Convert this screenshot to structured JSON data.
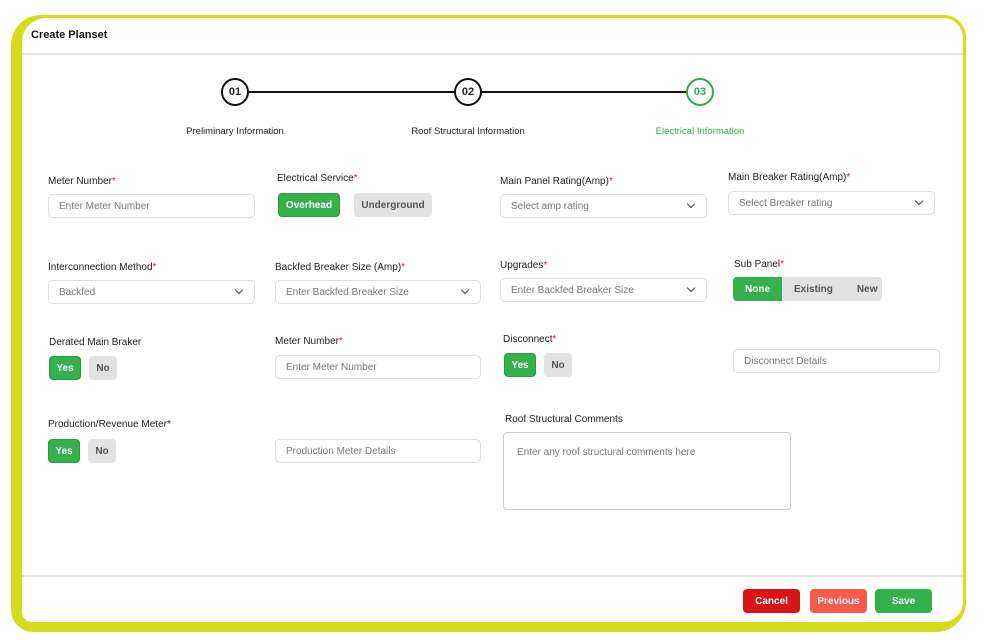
{
  "title": "Create Planset",
  "steps": [
    {
      "num": "01",
      "label": "Preliminary Information"
    },
    {
      "num": "02",
      "label": "Roof Structural Information"
    },
    {
      "num": "03",
      "label": "Electrical Information"
    }
  ],
  "fields": {
    "meter_number": {
      "label": "Meter Number",
      "placeholder": "Enter Meter Number"
    },
    "electrical_service": {
      "label": "Electrical Service",
      "options": [
        "Overhead",
        "Underground"
      ],
      "selected": "Overhead"
    },
    "main_panel": {
      "label": "Main Panel Rating(Amp)",
      "placeholder": "Select amp rating"
    },
    "main_breaker": {
      "label": "Main Breaker Rating(Amp)",
      "placeholder": "Select Breaker rating"
    },
    "interconnection": {
      "label": "Interconnection Method",
      "value": "Backfed"
    },
    "backfed": {
      "label": "Backfed Breaker Size (Amp)",
      "placeholder": "Enter Backfed Breaker Size"
    },
    "upgrades": {
      "label": "Upgrades",
      "placeholder": "Enter Backfed Breaker Size"
    },
    "sub_panel": {
      "label": "Sub Panel",
      "options": [
        "None",
        "Existing",
        "New"
      ],
      "selected": "None"
    },
    "derated": {
      "label": "Derated Main Braker",
      "options": [
        "Yes",
        "No"
      ],
      "selected": "Yes"
    },
    "meter_number2": {
      "label": "Meter Number",
      "placeholder": "Enter Meter Number"
    },
    "disconnect": {
      "label": "Disconnect",
      "options": [
        "Yes",
        "No"
      ],
      "selected": "Yes",
      "details_placeholder": "Disconnect Details"
    },
    "production": {
      "label": "Production/Revenue Meter*",
      "options": [
        "Yes",
        "No"
      ],
      "selected": "Yes",
      "details_placeholder": "Production Meter Details"
    },
    "roof_comments": {
      "label": "Roof Structural Comments",
      "placeholder": "Enter any roof structural comments here"
    }
  },
  "required_mark": "*",
  "footer": {
    "cancel": "Cancel",
    "previous": "Previous",
    "save": "Save"
  },
  "colors": {
    "accent": "#34b04c",
    "frame": "#d4dd1a",
    "cancel": "#d81414",
    "previous": "#f65a4b",
    "required": "#e01a1a"
  }
}
